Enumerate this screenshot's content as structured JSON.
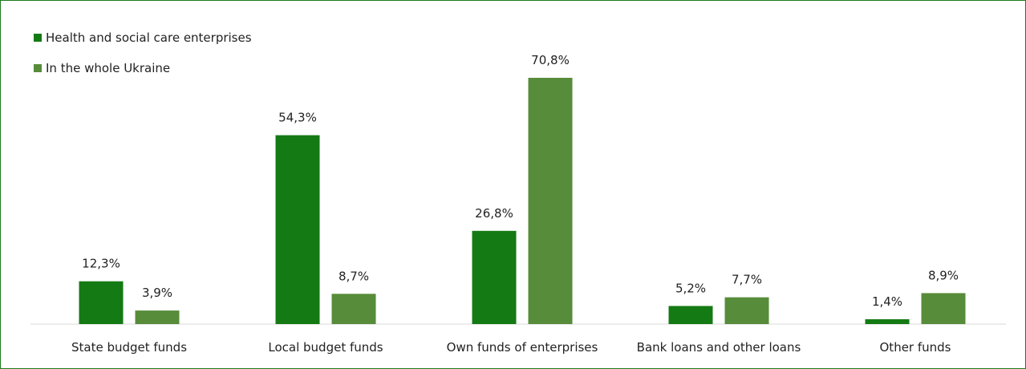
{
  "chart_data": {
    "type": "bar",
    "categories": [
      "State budget funds",
      "Local budget funds",
      "Own funds of enterprises",
      "Bank loans and other loans",
      "Other funds"
    ],
    "series": [
      {
        "name": "Health and social care enterprises",
        "values": [
          12.3,
          54.3,
          26.8,
          5.2,
          1.4
        ],
        "labels": [
          "12,3%",
          "54,3%",
          "26,8%",
          "5,2%",
          "1,4%"
        ],
        "color": "#147a14"
      },
      {
        "name": "In the whole Ukraine",
        "values": [
          3.9,
          8.7,
          70.8,
          7.7,
          8.9
        ],
        "labels": [
          "3,9%",
          "8,7%",
          "70,8%",
          "7,7%",
          "8,9%"
        ],
        "color": "#578c3a"
      }
    ],
    "ylim": [
      0,
      70.8
    ],
    "grid": false,
    "legend": "top-left"
  }
}
